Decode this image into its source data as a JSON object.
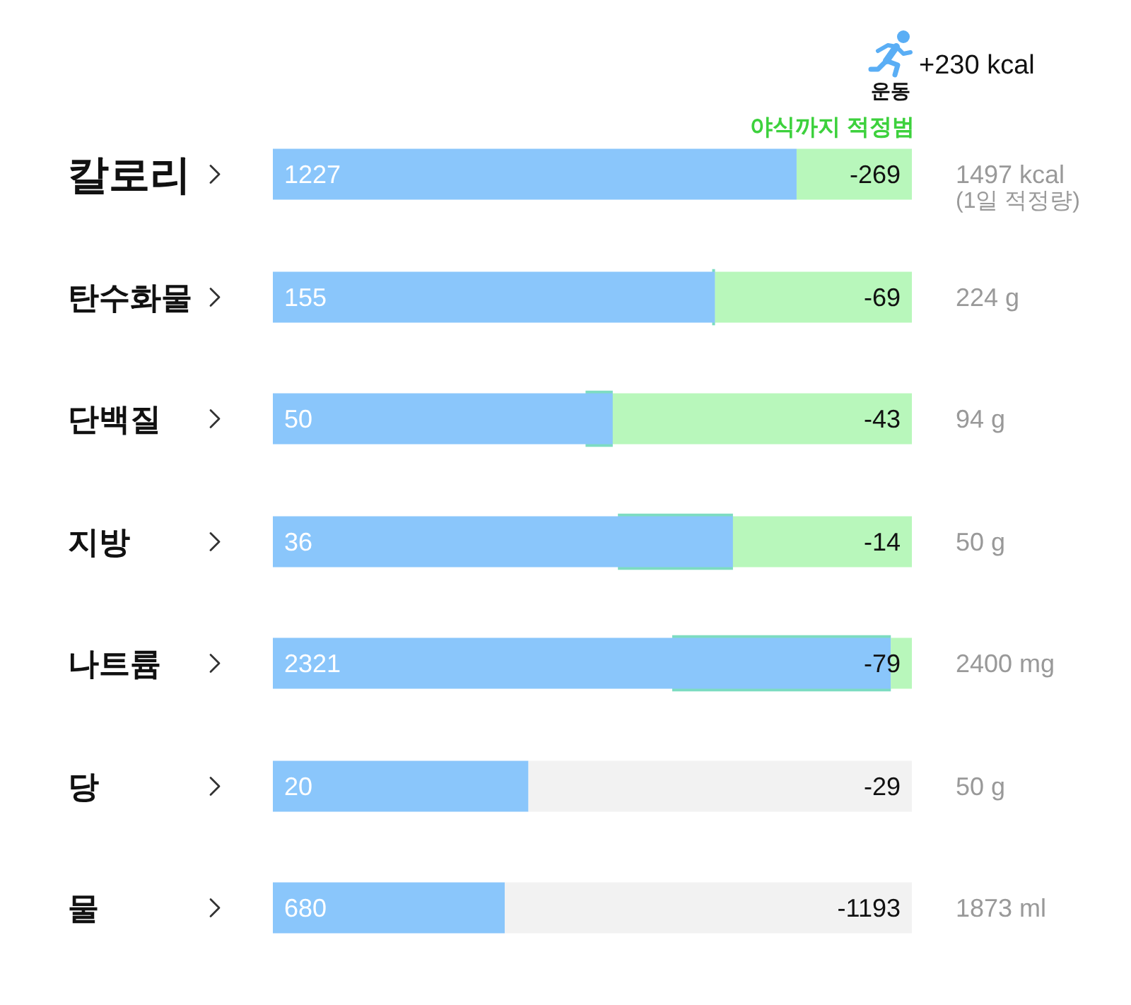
{
  "chart_data": [
    {
      "type": "bar",
      "orientation": "horizontal",
      "stacked": true,
      "categories": [
        "칼로리"
      ],
      "xlim": [
        0,
        1497
      ],
      "tick_labels": "y",
      "series": [
        {
          "color": "#8ac6fb",
          "values": [
            1227
          ],
          "value_labels": [
            "1227"
          ]
        },
        {
          "color": "#b8f7bb",
          "values": [
            270
          ]
        }
      ],
      "totals": [
        "1497 kcal"
      ],
      "annotations": [
        "+230 kcal",
        "운동",
        "야식까지 적정범",
        "-269",
        "(1일 적정량)"
      ]
    },
    {
      "type": "bar",
      "orientation": "horizontal",
      "stacked": true,
      "categories": [
        "탄수화물"
      ],
      "xlim": [
        0,
        224
      ],
      "tick_labels": "y",
      "series": [
        {
          "color": "#8ac6fb",
          "values": [
            155
          ],
          "value_labels": [
            "155"
          ]
        },
        {
          "color": "#b8f7bb",
          "values": [
            69
          ]
        }
      ],
      "bands": [
        {
          "axis": "x",
          "from": 154,
          "to": 155,
          "color": "#7ddcc1"
        }
      ],
      "totals": [
        "224 g"
      ],
      "annotations": [
        "-69"
      ]
    },
    {
      "type": "bar",
      "orientation": "horizontal",
      "stacked": true,
      "categories": [
        "단백질"
      ],
      "xlim": [
        0,
        94
      ],
      "tick_labels": "y",
      "series": [
        {
          "color": "#8ac6fb",
          "values": [
            50
          ],
          "value_labels": [
            "50"
          ]
        },
        {
          "color": "#b8f7bb",
          "values": [
            44
          ]
        }
      ],
      "bands": [
        {
          "axis": "x",
          "from": 46,
          "to": 50,
          "color": "#7ddcc1"
        }
      ],
      "totals": [
        "94 g"
      ],
      "annotations": [
        "-43"
      ]
    },
    {
      "type": "bar",
      "orientation": "horizontal",
      "stacked": true,
      "categories": [
        "지방"
      ],
      "xlim": [
        0,
        50
      ],
      "tick_labels": "y",
      "series": [
        {
          "color": "#8ac6fb",
          "values": [
            36
          ],
          "value_labels": [
            "36"
          ]
        },
        {
          "color": "#b8f7bb",
          "values": [
            14
          ]
        }
      ],
      "bands": [
        {
          "axis": "x",
          "from": 27,
          "to": 36,
          "color": "#7ddcc1"
        }
      ],
      "totals": [
        "50 g"
      ],
      "annotations": [
        "-14"
      ]
    },
    {
      "type": "bar",
      "orientation": "horizontal",
      "stacked": true,
      "categories": [
        "나트륨"
      ],
      "xlim": [
        0,
        2400
      ],
      "tick_labels": "y",
      "series": [
        {
          "color": "#8ac6fb",
          "values": [
            2321
          ],
          "value_labels": [
            "2321"
          ]
        },
        {
          "color": "#b8f7bb",
          "values": [
            79
          ]
        }
      ],
      "bands": [
        {
          "axis": "x",
          "from": 1500,
          "to": 2321,
          "color": "#7ddcc1"
        }
      ],
      "totals": [
        "2400 mg"
      ],
      "annotations": [
        "-79"
      ]
    },
    {
      "type": "bar",
      "orientation": "horizontal",
      "stacked": true,
      "categories": [
        "당"
      ],
      "xlim": [
        0,
        50
      ],
      "tick_labels": "y",
      "series": [
        {
          "color": "#8ac6fb",
          "values": [
            20
          ],
          "value_labels": [
            "20"
          ]
        },
        {
          "color": "#f2f2f2",
          "values": [
            30
          ]
        }
      ],
      "totals": [
        "50 g"
      ],
      "annotations": [
        "-29"
      ]
    },
    {
      "type": "bar",
      "orientation": "horizontal",
      "stacked": true,
      "categories": [
        "물"
      ],
      "xlim": [
        0,
        1873
      ],
      "tick_labels": "y",
      "series": [
        {
          "color": "#8ac6fb",
          "values": [
            680
          ],
          "value_labels": [
            "680"
          ]
        },
        {
          "color": "#f2f2f2",
          "values": [
            1193
          ]
        }
      ],
      "totals": [
        "1873 ml"
      ],
      "annotations": [
        "-1193"
      ]
    }
  ]
}
